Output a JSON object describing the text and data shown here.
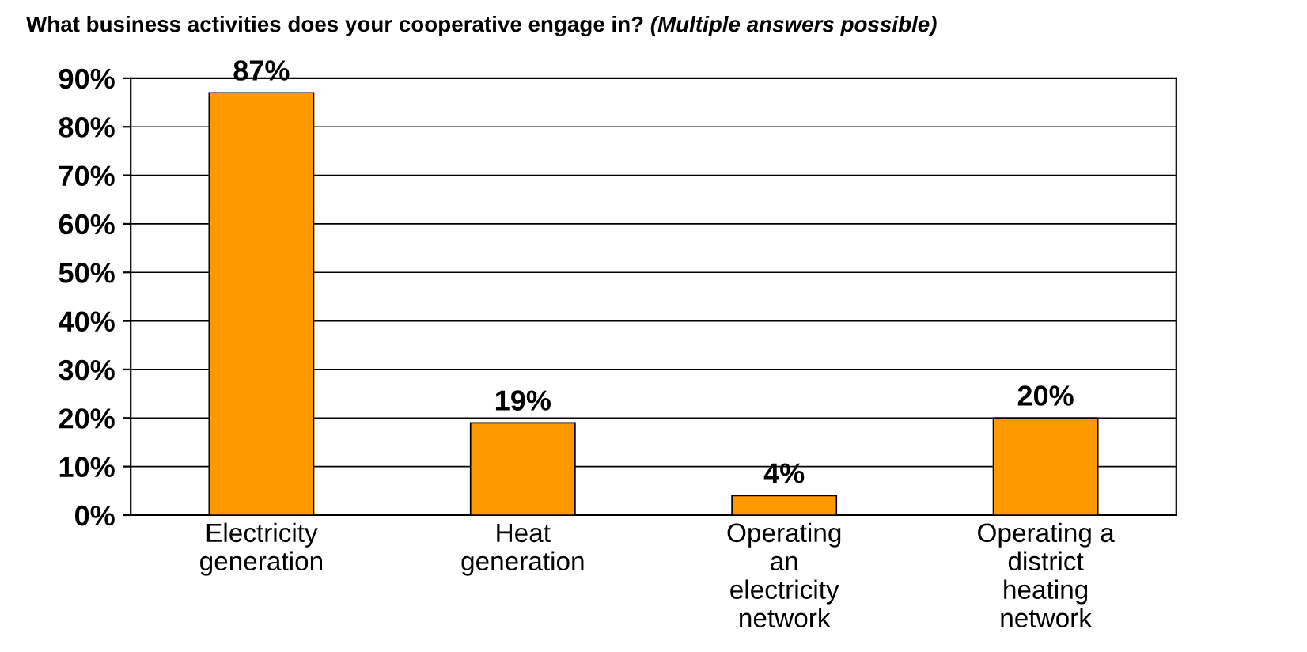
{
  "chart_data": {
    "type": "bar",
    "title": "What business activities does your cooperative engage in?",
    "subtitle": "(Multiple answers possible)",
    "categories": [
      "Electricity\ngeneration",
      "Heat\ngeneration",
      "Operating\nan\nelectricity\nnetwork",
      "Operating a\ndistrict\nheating\nnetwork"
    ],
    "values": [
      87,
      19,
      4,
      20
    ],
    "color": "#ff9900",
    "data_labels": true,
    "value_labels": [
      "87%",
      "19%",
      "4%",
      "20%"
    ],
    "ylim": [
      0,
      90
    ],
    "yticks": [
      {
        "value": 0,
        "label": "0%"
      },
      {
        "value": 10,
        "label": "10%"
      },
      {
        "value": 20,
        "label": "20%"
      },
      {
        "value": 30,
        "label": "30%"
      },
      {
        "value": 40,
        "label": "40%"
      },
      {
        "value": 50,
        "label": "50%"
      },
      {
        "value": 60,
        "label": "60%"
      },
      {
        "value": 70,
        "label": "70%"
      },
      {
        "value": 80,
        "label": "80%"
      },
      {
        "value": 90,
        "label": "90%"
      }
    ],
    "grid": "y",
    "legend": false
  }
}
